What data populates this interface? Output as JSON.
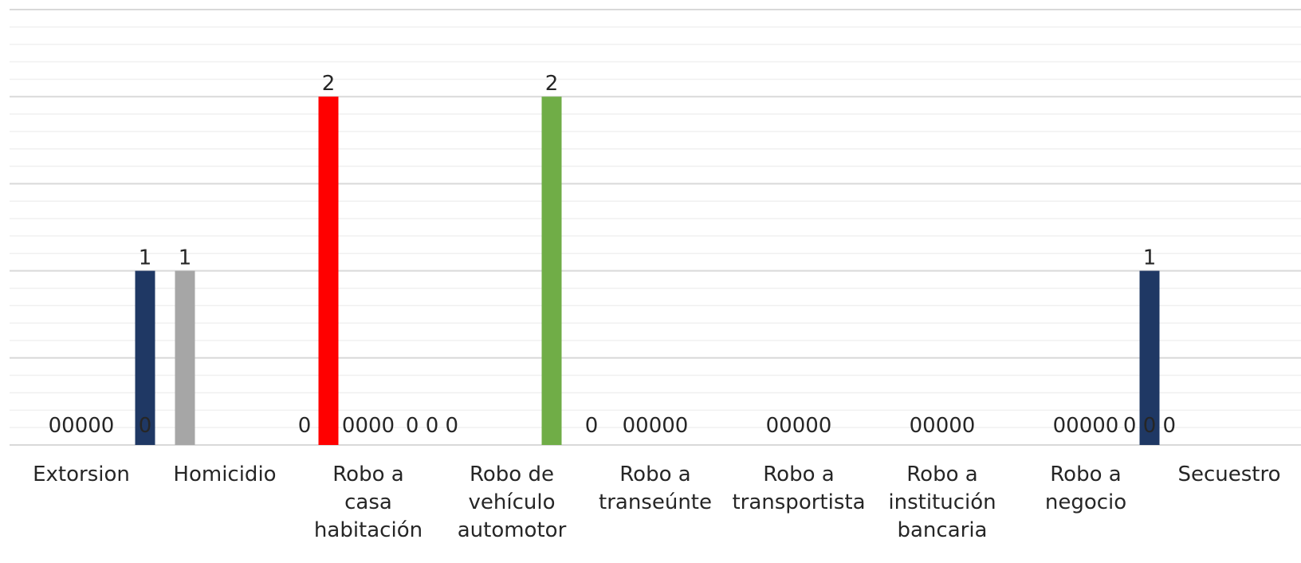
{
  "chart_data": {
    "type": "bar",
    "title": "",
    "xlabel": "",
    "ylabel": "",
    "ylim": [
      0,
      2.5
    ],
    "grid": true,
    "legend": "none",
    "categories": [
      {
        "lines": [
          "Extorsion"
        ]
      },
      {
        "lines": [
          "Homicidio"
        ]
      },
      {
        "lines": [
          "Robo a",
          "casa",
          "habitación"
        ]
      },
      {
        "lines": [
          "Robo de",
          "vehículo",
          "automotor"
        ]
      },
      {
        "lines": [
          "Robo a",
          "transeúnte"
        ]
      },
      {
        "lines": [
          "Robo a",
          "transportista"
        ]
      },
      {
        "lines": [
          "Robo a",
          "institución",
          "bancaria"
        ]
      },
      {
        "lines": [
          "Robo a",
          "negocio"
        ]
      },
      {
        "lines": [
          "Secuestro"
        ]
      }
    ],
    "series_colors": [
      "#1f3864",
      "#70ad47",
      "#ff0000",
      "#a6a6a6",
      "#ffc000"
    ],
    "values": [
      [
        0,
        0,
        0,
        0,
        0
      ],
      [
        1,
        1,
        0,
        0,
        0
      ],
      [
        0,
        2,
        0,
        0,
        0
      ],
      [
        0,
        0,
        0,
        2,
        0
      ],
      [
        0,
        0,
        0,
        0,
        0
      ],
      [
        0,
        0,
        0,
        0,
        0
      ],
      [
        0,
        0,
        0,
        0,
        0
      ],
      [
        0,
        0,
        0,
        0,
        0
      ],
      [
        1,
        0,
        0,
        0,
        0
      ]
    ],
    "bar_colors": [
      [
        "#1f3864",
        "#70ad47",
        "#ff0000",
        "#a6a6a6",
        "#ffc000"
      ],
      [
        "#1f3864",
        "#a6a6a6",
        "#70ad47",
        "#ff0000",
        "#ffc000"
      ],
      [
        "#1f3864",
        "#ff0000",
        "#70ad47",
        "#a6a6a6",
        "#ffc000"
      ],
      [
        "#1f3864",
        "#ff0000",
        "#a6a6a6",
        "#70ad47",
        "#ffc000"
      ],
      [
        "#1f3864",
        "#70ad47",
        "#ff0000",
        "#a6a6a6",
        "#ffc000"
      ],
      [
        "#1f3864",
        "#70ad47",
        "#ff0000",
        "#a6a6a6",
        "#ffc000"
      ],
      [
        "#1f3864",
        "#70ad47",
        "#ff0000",
        "#a6a6a6",
        "#ffc000"
      ],
      [
        "#1f3864",
        "#70ad47",
        "#ff0000",
        "#a6a6a6",
        "#ffc000"
      ],
      [
        "#1f3864",
        "#70ad47",
        "#ff0000",
        "#a6a6a6",
        "#ffc000"
      ]
    ],
    "zero_label_text": [
      "00000",
      "0",
      "0000",
      "0 0 0",
      "00000",
      "00000",
      "00000",
      "00000",
      "0 0 0"
    ],
    "zero_label_text_extra": [
      "",
      "0",
      "",
      "0",
      "",
      "",
      "",
      "",
      "0"
    ]
  }
}
